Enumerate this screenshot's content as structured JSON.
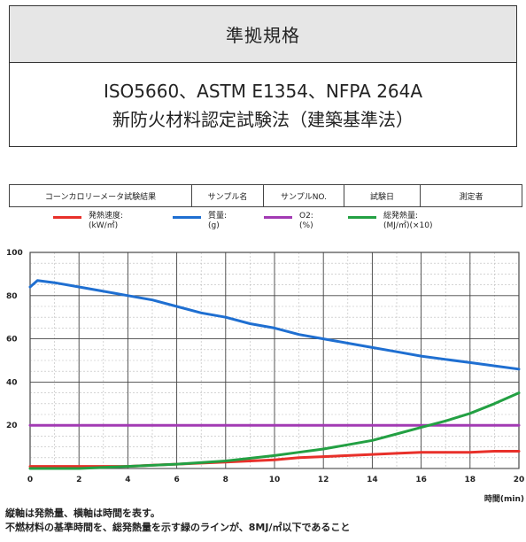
{
  "standard": {
    "header": "準拠規格",
    "line1": "ISO5660、ASTM E1354、NFPA 264A",
    "line2": "新防火材料認定試験法（建築基準法）"
  },
  "result_table": {
    "title": "コーンカロリーメータ試験結果",
    "col1": "サンプル名",
    "col2": "サンプルNO.",
    "col3": "試験日",
    "col4": "測定者"
  },
  "legend": [
    {
      "label": "発熱速度:",
      "unit": "(kW/㎡)",
      "color": "#e8302a"
    },
    {
      "label": "質量:",
      "unit": "(g)",
      "color": "#1f6fd1"
    },
    {
      "label": "O2:",
      "unit": "(%)",
      "color": "#a23ab3"
    },
    {
      "label": "総発熱量:",
      "unit": "(MJ/㎡)(×10)",
      "color": "#23a043"
    }
  ],
  "notes": {
    "line1": "縦軸は発熱量、横軸は時間を表す。",
    "line2": "不燃材料の基準時間を、総発熱量を示す緑のラインが、8MJ/㎡以下であること"
  },
  "chart_data": {
    "type": "line",
    "xlabel": "時間(min)",
    "ylabel": "",
    "xlim": [
      0,
      20
    ],
    "ylim": [
      0,
      100
    ],
    "xticks": [
      0,
      2,
      4,
      6,
      8,
      10,
      12,
      14,
      16,
      18,
      20
    ],
    "yticks": [
      20,
      40,
      60,
      80,
      100
    ],
    "grid": true,
    "series": [
      {
        "name": "発熱速度",
        "color": "#e8302a",
        "x": [
          0,
          1,
          2,
          3,
          4,
          5,
          6,
          7,
          8,
          9,
          10,
          11,
          12,
          13,
          14,
          15,
          16,
          17,
          18,
          19,
          20
        ],
        "y": [
          1,
          1,
          1,
          1,
          1,
          1.5,
          2,
          2.5,
          3,
          3.5,
          4,
          5,
          5.5,
          6,
          6.5,
          7,
          7.5,
          7.5,
          7.5,
          8,
          8
        ]
      },
      {
        "name": "質量",
        "color": "#1f6fd1",
        "x": [
          0,
          0.3,
          1,
          2,
          3,
          4,
          5,
          6,
          7,
          8,
          9,
          10,
          11,
          12,
          13,
          14,
          15,
          16,
          17,
          18,
          19,
          20
        ],
        "y": [
          84,
          87,
          86,
          84,
          82,
          80,
          78,
          75,
          72,
          70,
          67,
          65,
          62,
          60,
          58,
          56,
          54,
          52,
          50.5,
          49,
          47.5,
          46
        ]
      },
      {
        "name": "O2",
        "color": "#a23ab3",
        "x": [
          0,
          20
        ],
        "y": [
          20,
          20
        ]
      },
      {
        "name": "総発熱量",
        "color": "#23a043",
        "x": [
          0,
          2,
          4,
          6,
          8,
          10,
          11,
          12,
          13,
          14,
          15,
          16,
          17,
          18,
          19,
          20
        ],
        "y": [
          0,
          0,
          1,
          2,
          3.5,
          6,
          7.5,
          9,
          11,
          13,
          16,
          19,
          22,
          25.5,
          30,
          35
        ]
      }
    ]
  }
}
